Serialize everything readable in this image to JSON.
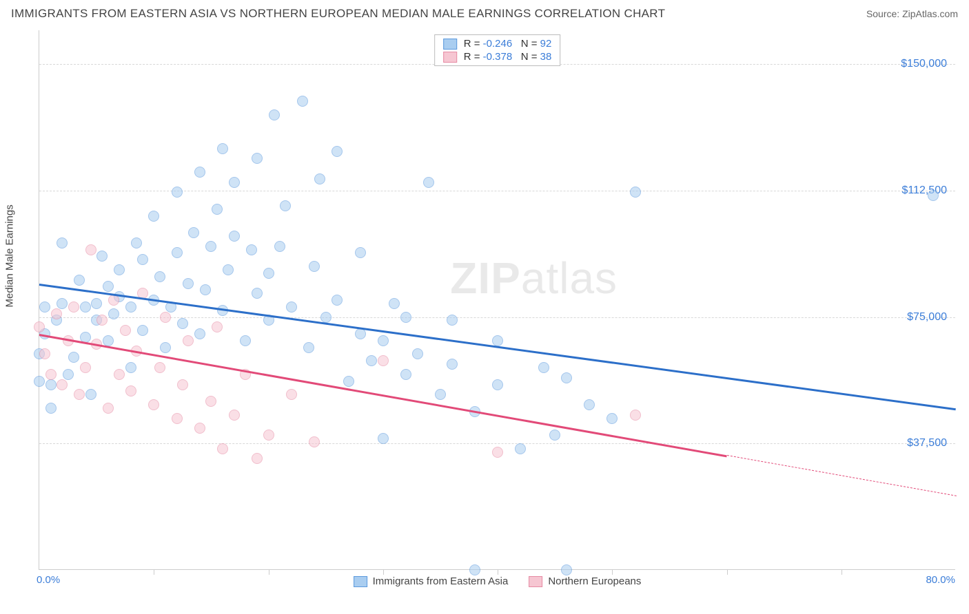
{
  "header": {
    "title": "IMMIGRANTS FROM EASTERN ASIA VS NORTHERN EUROPEAN MEDIAN MALE EARNINGS CORRELATION CHART",
    "source": "Source: ZipAtlas.com"
  },
  "watermark": {
    "part1": "ZIP",
    "part2": "atlas"
  },
  "chart": {
    "type": "scatter",
    "background_color": "#ffffff",
    "grid_color": "#d8d8d8",
    "border_color": "#cccccc",
    "title_fontsize": 17,
    "label_fontsize": 15,
    "tick_fontsize": 16,
    "tick_color": "#3b7dd8",
    "ylabel": "Median Male Earnings",
    "xlim": [
      0,
      80
    ],
    "ylim": [
      0,
      160000
    ],
    "y_ticks": [
      37500,
      75000,
      112500,
      150000
    ],
    "y_tick_labels": [
      "$37,500",
      "$75,000",
      "$112,500",
      "$150,000"
    ],
    "x_ticks": [
      10,
      20,
      30,
      40,
      50,
      60,
      70
    ],
    "x_range_labels": {
      "min": "0.0%",
      "max": "80.0%"
    },
    "marker_radius": 8,
    "marker_opacity": 0.55,
    "series": [
      {
        "id": "eastern_asia",
        "name": "Immigrants from Eastern Asia",
        "fill_color": "#a9cdf0",
        "stroke_color": "#5b99dd",
        "trend_color": "#2c6fc9",
        "trend_width": 2.5,
        "stats": {
          "r_label": "R =",
          "r": "-0.246",
          "n_label": "N =",
          "n": "92"
        },
        "trend": {
          "x1": 0,
          "y1": 85000,
          "x2": 80,
          "y2": 48000,
          "dash_from_x": null
        },
        "points": [
          [
            0,
            56000
          ],
          [
            0,
            64000
          ],
          [
            0.5,
            70000
          ],
          [
            0.5,
            78000
          ],
          [
            1,
            48000
          ],
          [
            1,
            55000
          ],
          [
            1.5,
            74000
          ],
          [
            2,
            79000
          ],
          [
            2,
            97000
          ],
          [
            2.5,
            58000
          ],
          [
            3,
            63000
          ],
          [
            3.5,
            86000
          ],
          [
            4,
            69000
          ],
          [
            4,
            78000
          ],
          [
            4.5,
            52000
          ],
          [
            5,
            74000
          ],
          [
            5,
            79000
          ],
          [
            5.5,
            93000
          ],
          [
            6,
            84000
          ],
          [
            6,
            68000
          ],
          [
            6.5,
            76000
          ],
          [
            7,
            81000
          ],
          [
            7,
            89000
          ],
          [
            8,
            60000
          ],
          [
            8,
            78000
          ],
          [
            8.5,
            97000
          ],
          [
            9,
            71000
          ],
          [
            9,
            92000
          ],
          [
            10,
            80000
          ],
          [
            10,
            105000
          ],
          [
            10.5,
            87000
          ],
          [
            11,
            66000
          ],
          [
            11.5,
            78000
          ],
          [
            12,
            94000
          ],
          [
            12,
            112000
          ],
          [
            12.5,
            73000
          ],
          [
            13,
            85000
          ],
          [
            13.5,
            100000
          ],
          [
            14,
            70000
          ],
          [
            14,
            118000
          ],
          [
            14.5,
            83000
          ],
          [
            15,
            96000
          ],
          [
            15.5,
            107000
          ],
          [
            16,
            77000
          ],
          [
            16,
            125000
          ],
          [
            16.5,
            89000
          ],
          [
            17,
            99000
          ],
          [
            17,
            115000
          ],
          [
            18,
            68000
          ],
          [
            18.5,
            95000
          ],
          [
            19,
            82000
          ],
          [
            19,
            122000
          ],
          [
            20,
            74000
          ],
          [
            20,
            88000
          ],
          [
            20.5,
            135000
          ],
          [
            21,
            96000
          ],
          [
            21.5,
            108000
          ],
          [
            22,
            78000
          ],
          [
            23,
            139000
          ],
          [
            23.5,
            66000
          ],
          [
            24,
            90000
          ],
          [
            24.5,
            116000
          ],
          [
            25,
            75000
          ],
          [
            26,
            80000
          ],
          [
            26,
            124000
          ],
          [
            27,
            56000
          ],
          [
            28,
            70000
          ],
          [
            28,
            94000
          ],
          [
            29,
            62000
          ],
          [
            30,
            68000
          ],
          [
            30,
            39000
          ],
          [
            31,
            79000
          ],
          [
            32,
            58000
          ],
          [
            32,
            75000
          ],
          [
            33,
            64000
          ],
          [
            34,
            115000
          ],
          [
            35,
            52000
          ],
          [
            36,
            74000
          ],
          [
            36,
            61000
          ],
          [
            38,
            47000
          ],
          [
            38,
            0
          ],
          [
            40,
            55000
          ],
          [
            40,
            68000
          ],
          [
            42,
            36000
          ],
          [
            44,
            60000
          ],
          [
            45,
            40000
          ],
          [
            46,
            57000
          ],
          [
            46,
            0
          ],
          [
            48,
            49000
          ],
          [
            50,
            45000
          ],
          [
            52,
            112000
          ],
          [
            78,
            111000
          ]
        ]
      },
      {
        "id": "northern_european",
        "name": "Northern Europeans",
        "fill_color": "#f6c6d2",
        "stroke_color": "#e68aa3",
        "trend_color": "#e24a78",
        "trend_width": 2.5,
        "stats": {
          "r_label": "R =",
          "r": "-0.378",
          "n_label": "N =",
          "n": "38"
        },
        "trend": {
          "x1": 0,
          "y1": 70000,
          "x2": 80,
          "y2": 22000,
          "dash_from_x": 60
        },
        "points": [
          [
            0,
            72000
          ],
          [
            0.5,
            64000
          ],
          [
            1,
            58000
          ],
          [
            1.5,
            76000
          ],
          [
            2,
            55000
          ],
          [
            2.5,
            68000
          ],
          [
            3,
            78000
          ],
          [
            3.5,
            52000
          ],
          [
            4,
            60000
          ],
          [
            4.5,
            95000
          ],
          [
            5,
            67000
          ],
          [
            5.5,
            74000
          ],
          [
            6,
            48000
          ],
          [
            6.5,
            80000
          ],
          [
            7,
            58000
          ],
          [
            7.5,
            71000
          ],
          [
            8,
            53000
          ],
          [
            8.5,
            65000
          ],
          [
            9,
            82000
          ],
          [
            10,
            49000
          ],
          [
            10.5,
            60000
          ],
          [
            11,
            75000
          ],
          [
            12,
            45000
          ],
          [
            12.5,
            55000
          ],
          [
            13,
            68000
          ],
          [
            14,
            42000
          ],
          [
            15,
            50000
          ],
          [
            15.5,
            72000
          ],
          [
            16,
            36000
          ],
          [
            17,
            46000
          ],
          [
            18,
            58000
          ],
          [
            19,
            33000
          ],
          [
            20,
            40000
          ],
          [
            22,
            52000
          ],
          [
            24,
            38000
          ],
          [
            30,
            62000
          ],
          [
            40,
            35000
          ],
          [
            52,
            46000
          ]
        ]
      }
    ],
    "legend_top": {
      "r_spacer": "   ",
      "position": "top-center"
    },
    "legend_bottom": {
      "position": "bottom-center"
    }
  }
}
